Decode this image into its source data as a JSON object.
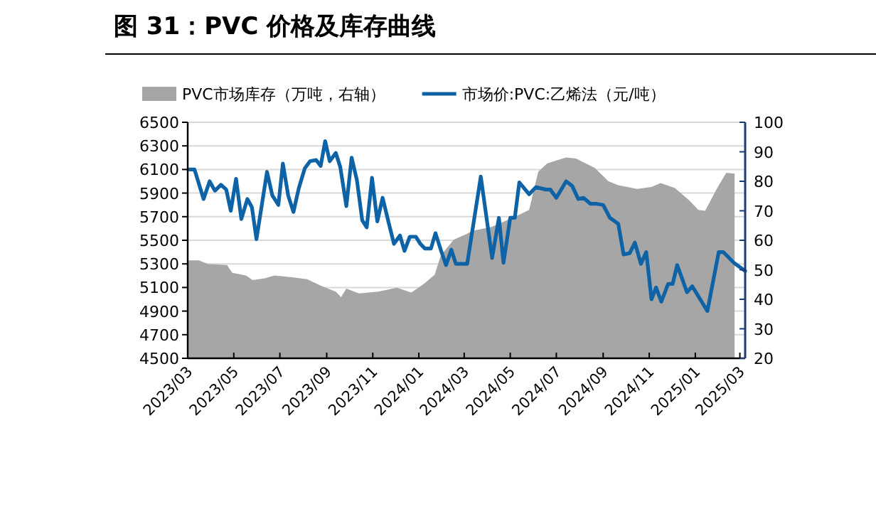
{
  "chart_data": {
    "type": "line",
    "title": "图 31：PVC 价格及库存曲线",
    "xlim": [
      "2023-03-01",
      "2025-03-08"
    ],
    "xticks": [
      {
        "value": "2023-03-01",
        "label": "2023/03"
      },
      {
        "value": "2023-05-01",
        "label": "2023/05"
      },
      {
        "value": "2023-07-01",
        "label": "2023/07"
      },
      {
        "value": "2023-09-01",
        "label": "2023/09"
      },
      {
        "value": "2023-11-01",
        "label": "2023/11"
      },
      {
        "value": "2024-01-01",
        "label": "2024/01"
      },
      {
        "value": "2024-03-01",
        "label": "2024/03"
      },
      {
        "value": "2024-05-01",
        "label": "2024/05"
      },
      {
        "value": "2024-07-01",
        "label": "2024/07"
      },
      {
        "value": "2024-09-01",
        "label": "2024/09"
      },
      {
        "value": "2024-11-01",
        "label": "2024/11"
      },
      {
        "value": "2025-01-01",
        "label": "2025/01"
      },
      {
        "value": "2025-03-01",
        "label": "2025/03"
      }
    ],
    "ylim": [
      4500,
      6500
    ],
    "yticks": [
      4500,
      4700,
      4900,
      5100,
      5300,
      5500,
      5700,
      5900,
      6100,
      6300,
      6500
    ],
    "y2lim": [
      20,
      100
    ],
    "y2ticks": [
      20,
      30,
      40,
      50,
      60,
      70,
      80,
      90,
      100
    ],
    "grid": "y",
    "legend": "top",
    "series": [
      {
        "name": "PVC市场库存（万吨，右轴）",
        "type": "area",
        "axis": "y2",
        "color": "#a6a6a6",
        "x": [
          "2023-03-02",
          "2023-03-16",
          "2023-03-28",
          "2023-04-22",
          "2023-04-29",
          "2023-05-17",
          "2023-05-26",
          "2023-06-11",
          "2023-06-24",
          "2023-07-19",
          "2023-08-06",
          "2023-08-25",
          "2023-09-13",
          "2023-09-20",
          "2023-09-27",
          "2023-10-14",
          "2023-11-08",
          "2023-12-03",
          "2023-12-22",
          "2024-01-09",
          "2024-01-22",
          "2024-01-30",
          "2024-02-16",
          "2024-03-05",
          "2024-03-12",
          "2024-04-06",
          "2024-04-24",
          "2024-05-13",
          "2024-05-26",
          "2024-06-07",
          "2024-06-19",
          "2024-07-14",
          "2024-07-27",
          "2024-08-21",
          "2024-09-08",
          "2024-09-21",
          "2024-10-16",
          "2024-11-04",
          "2024-11-16",
          "2024-12-05",
          "2024-12-24",
          "2025-01-05",
          "2025-01-14",
          "2025-01-30",
          "2025-02-11",
          "2025-02-22"
        ],
        "values": [
          53.2,
          53.2,
          51.9,
          51.6,
          49.0,
          48.1,
          46.5,
          47.1,
          48.1,
          47.4,
          46.8,
          44.5,
          42.6,
          40.7,
          43.6,
          42.0,
          42.6,
          43.9,
          42.3,
          45.5,
          48.4,
          54.8,
          60.2,
          62.2,
          63.2,
          64.5,
          66.5,
          68.7,
          70.3,
          83.2,
          86.1,
          88.1,
          87.7,
          84.5,
          80.0,
          78.7,
          77.4,
          78.1,
          79.4,
          77.7,
          73.5,
          70.3,
          70.0,
          77.7,
          82.9,
          82.6
        ]
      },
      {
        "name": "市场价:PVC:乙烯法（元/吨）",
        "type": "line",
        "color": "#0e62a6",
        "x": [
          "2023-03-02",
          "2023-03-10",
          "2023-03-22",
          "2023-03-30",
          "2023-04-06",
          "2023-04-14",
          "2023-04-21",
          "2023-04-27",
          "2023-05-04",
          "2023-05-11",
          "2023-05-19",
          "2023-05-25",
          "2023-05-31",
          "2023-06-14",
          "2023-06-21",
          "2023-06-29",
          "2023-07-05",
          "2023-07-12",
          "2023-07-19",
          "2023-07-26",
          "2023-08-03",
          "2023-08-10",
          "2023-08-18",
          "2023-08-24",
          "2023-08-30",
          "2023-09-05",
          "2023-09-13",
          "2023-09-19",
          "2023-09-27",
          "2023-10-04",
          "2023-10-11",
          "2023-10-18",
          "2023-10-24",
          "2023-10-31",
          "2023-11-07",
          "2023-11-14",
          "2023-11-22",
          "2023-11-29",
          "2023-12-07",
          "2023-12-13",
          "2023-12-20",
          "2023-12-28",
          "2024-01-03",
          "2024-01-09",
          "2024-01-17",
          "2024-01-23",
          "2024-01-30",
          "2024-02-06",
          "2024-02-13",
          "2024-02-19",
          "2024-03-05",
          "2024-03-23",
          "2024-04-07",
          "2024-04-16",
          "2024-04-22",
          "2024-05-01",
          "2024-05-07",
          "2024-05-13",
          "2024-05-26",
          "2024-06-04",
          "2024-06-17",
          "2024-06-23",
          "2024-07-01",
          "2024-07-14",
          "2024-07-22",
          "2024-07-30",
          "2024-08-06",
          "2024-08-15",
          "2024-08-22",
          "2024-09-01",
          "2024-09-10",
          "2024-09-21",
          "2024-09-28",
          "2024-10-06",
          "2024-10-13",
          "2024-10-21",
          "2024-10-28",
          "2024-11-04",
          "2024-11-10",
          "2024-11-17",
          "2024-11-26",
          "2024-12-02",
          "2024-12-08",
          "2024-12-21",
          "2024-12-28",
          "2025-01-17",
          "2025-02-01",
          "2025-02-07",
          "2025-02-21",
          "2025-03-08"
        ],
        "values": [
          6100,
          6100,
          5850,
          6000,
          5920,
          5970,
          5930,
          5750,
          6020,
          5680,
          5850,
          5780,
          5510,
          6080,
          5880,
          5800,
          6150,
          5880,
          5740,
          5940,
          6110,
          6170,
          6180,
          6130,
          6340,
          6170,
          6240,
          6120,
          5790,
          6200,
          6010,
          5670,
          5610,
          6030,
          5660,
          5860,
          5650,
          5470,
          5540,
          5410,
          5530,
          5530,
          5470,
          5430,
          5430,
          5560,
          5420,
          5290,
          5420,
          5300,
          5300,
          6040,
          5350,
          5690,
          5310,
          5690,
          5690,
          5990,
          5890,
          5950,
          5930,
          5930,
          5860,
          6000,
          5960,
          5850,
          5860,
          5810,
          5810,
          5800,
          5690,
          5640,
          5380,
          5390,
          5480,
          5300,
          5400,
          5000,
          5100,
          4980,
          5130,
          5130,
          5290,
          5060,
          5110,
          4900,
          5400,
          5400,
          5310,
          5240
        ]
      }
    ]
  }
}
